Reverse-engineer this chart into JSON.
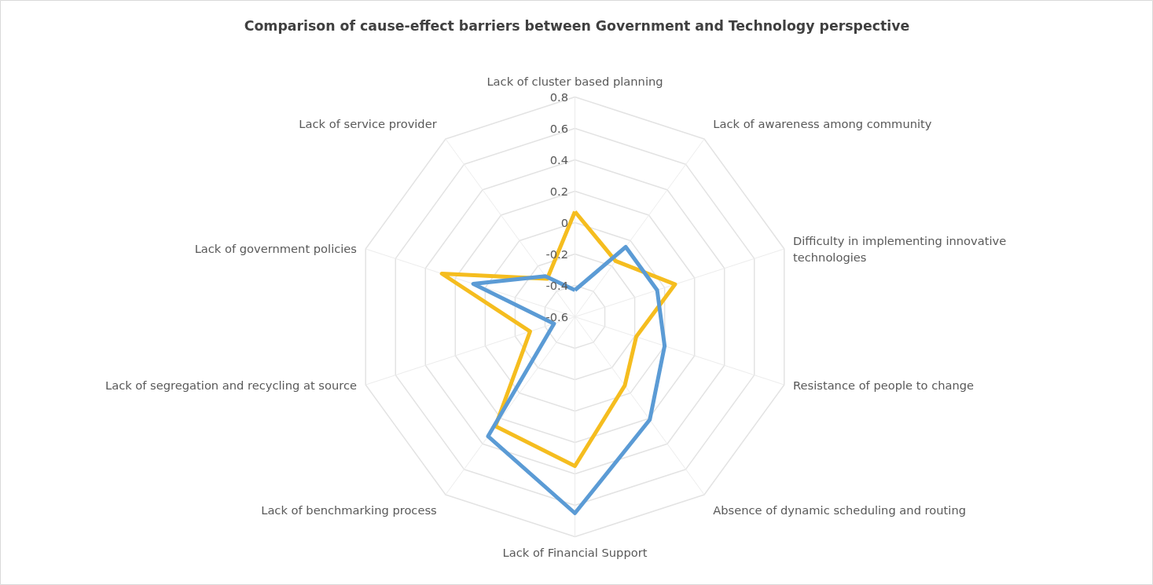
{
  "chart_data": {
    "type": "radar",
    "title": "Comparison of cause-effect barriers between Government and Technology perspective",
    "categories": [
      "Lack of cluster based planning",
      "Lack of awareness among community",
      "Difficulty in implementing innovative technologies",
      "Resistance of people to change",
      "Absence of dynamic scheduling and routing",
      "Lack of Financial Support",
      "Lack of benchmarking process",
      "Lack of segregation and recycling at source",
      "Lack of government policies",
      "Lack of service provider"
    ],
    "series": [
      {
        "color": "#f5bd1f",
        "values": [
          0.07,
          -0.16,
          0.07,
          -0.19,
          -0.06,
          0.35,
          0.26,
          -0.3,
          0.29,
          -0.3
        ]
      },
      {
        "color": "#5b9bd5",
        "values": [
          -0.43,
          -0.05,
          -0.05,
          0.0,
          0.21,
          0.65,
          0.34,
          -0.46,
          0.08,
          -0.28
        ]
      }
    ],
    "ylim": [
      -0.6,
      0.8
    ],
    "yticks": [
      -0.6,
      -0.4,
      -0.2,
      0,
      0.2,
      0.4,
      0.6,
      0.8
    ],
    "grid": true,
    "line_style": "solid",
    "marker": "none"
  }
}
